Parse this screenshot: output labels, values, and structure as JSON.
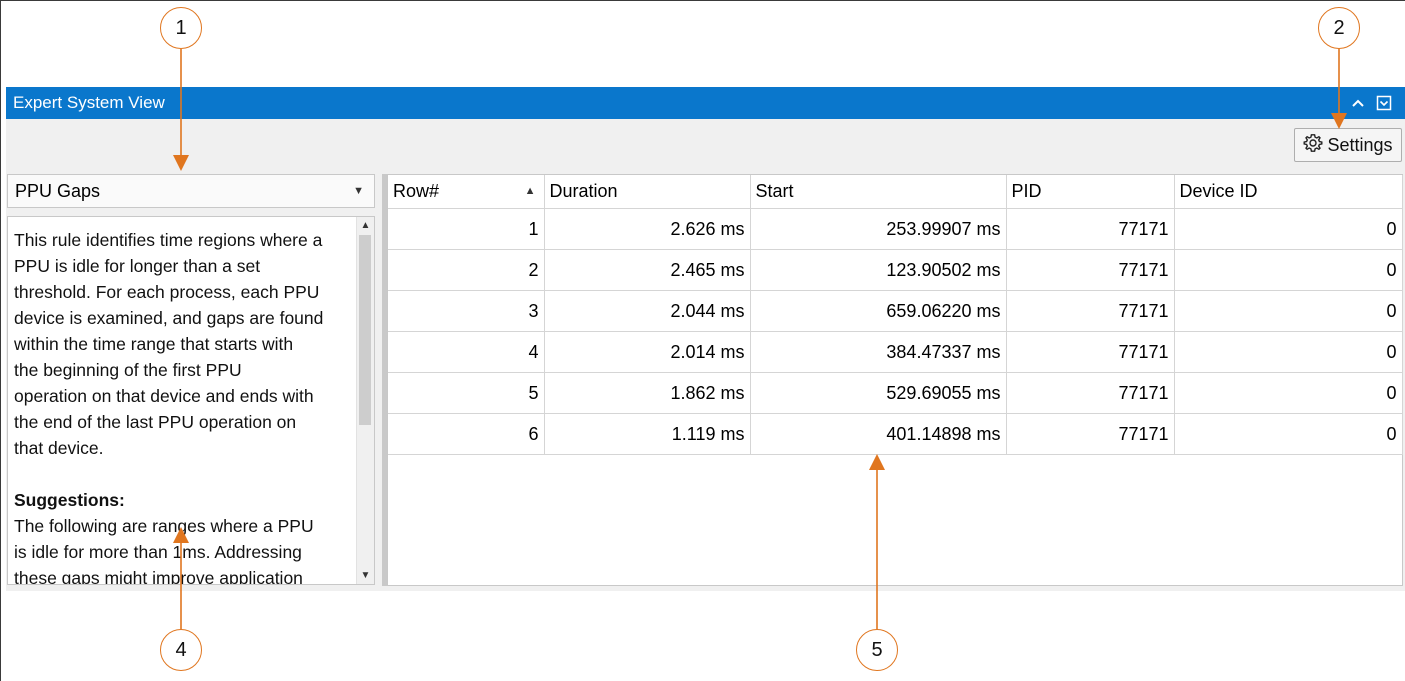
{
  "callouts": [
    "1",
    "2",
    "4",
    "5"
  ],
  "window": {
    "title": "Expert System View",
    "collapse_icon": "chevron-up-icon",
    "menu_icon": "dropdown-box-icon"
  },
  "settings": {
    "label": "Settings",
    "icon": "gear-icon"
  },
  "rule_select": {
    "value": "PPU Gaps"
  },
  "description": {
    "paragraph": [
      "This rule identifies time regions where a",
      "PPU is idle for longer than a set",
      "threshold. For each process, each PPU",
      "device is examined, and gaps are found",
      "within the time range that starts with",
      "the beginning of the first PPU",
      "operation on that device and ends with",
      "the end of the last PPU operation on",
      "that device."
    ],
    "heading": "Suggestions:",
    "suggestion": [
      "The following are ranges where a PPU",
      "is idle for more than 1ms. Addressing",
      "these gaps might improve application"
    ]
  },
  "table": {
    "columns": [
      "Row#",
      "Duration",
      "Start",
      "PID",
      "Device ID"
    ],
    "rows": [
      [
        "1",
        "2.626 ms",
        "253.99907 ms",
        "77171",
        "0"
      ],
      [
        "2",
        "2.465 ms",
        "123.90502 ms",
        "77171",
        "0"
      ],
      [
        "3",
        "2.044 ms",
        "659.06220 ms",
        "77171",
        "0"
      ],
      [
        "4",
        "2.014 ms",
        "384.47337 ms",
        "77171",
        "0"
      ],
      [
        "5",
        "1.862 ms",
        "529.69055 ms",
        "77171",
        "0"
      ],
      [
        "6",
        "1.119 ms",
        "401.14898 ms",
        "77171",
        "0"
      ]
    ]
  },
  "colors": {
    "titlebar": "#0a77cc",
    "callout": "#e0761f",
    "panel": "#f0f0f0"
  }
}
